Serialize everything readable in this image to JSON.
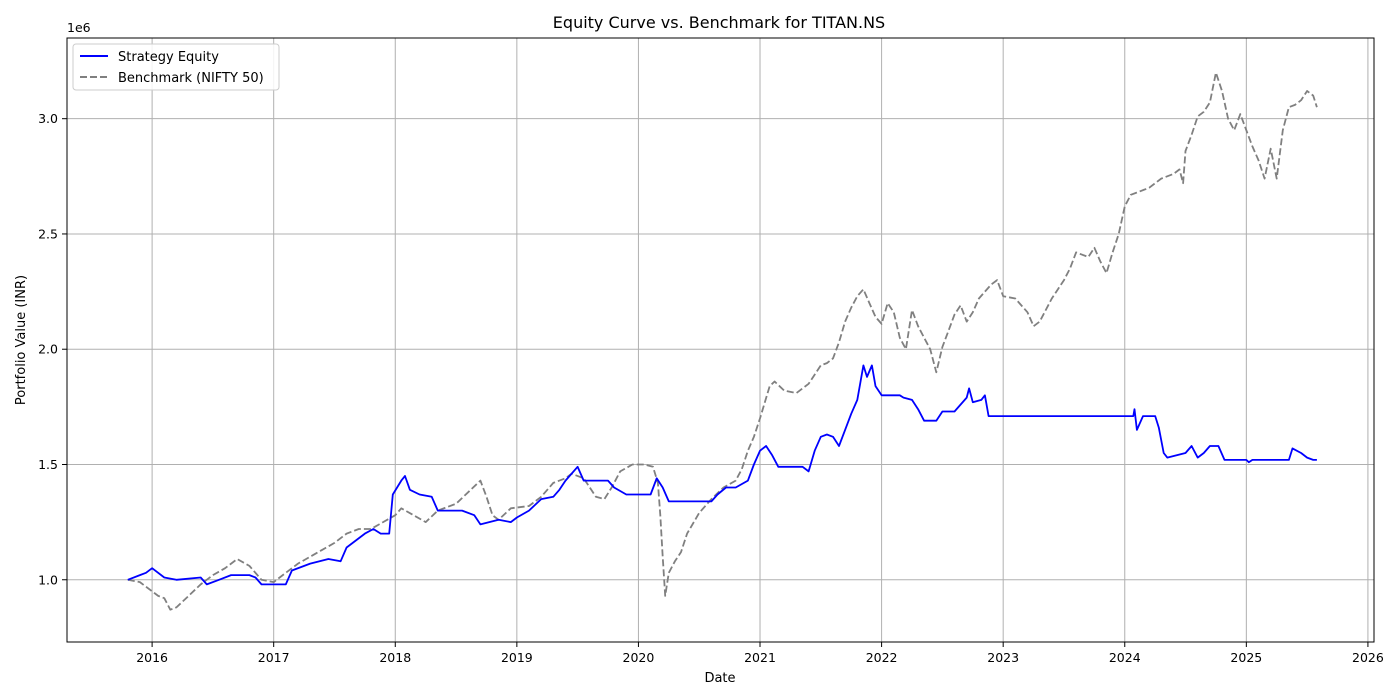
{
  "chart_data": {
    "type": "line",
    "title": "Equity Curve vs. Benchmark for TITAN.NS",
    "xlabel": "Date",
    "ylabel": "Portfolio Value (INR)",
    "y_scale_label": "1e6",
    "xlim": [
      2015.3,
      2026.05
    ],
    "ylim": [
      0.73,
      3.35
    ],
    "x_ticks": [
      2016,
      2017,
      2018,
      2019,
      2020,
      2021,
      2022,
      2023,
      2024,
      2025,
      2026
    ],
    "x_tick_labels": [
      "2016",
      "2017",
      "2018",
      "2019",
      "2020",
      "2021",
      "2022",
      "2023",
      "2024",
      "2025",
      "2026"
    ],
    "y_ticks": [
      1.0,
      1.5,
      2.0,
      2.5,
      3.0
    ],
    "y_tick_labels": [
      "1.0",
      "1.5",
      "2.0",
      "2.5",
      "3.0"
    ],
    "grid": true,
    "legend_position": "top-left",
    "series": [
      {
        "name": "Strategy Equity",
        "color": "#0000ff",
        "style": "solid",
        "points": [
          [
            2015.8,
            1.0
          ],
          [
            2015.9,
            1.02
          ],
          [
            2015.95,
            1.03
          ],
          [
            2016.0,
            1.05
          ],
          [
            2016.1,
            1.01
          ],
          [
            2016.2,
            1.0
          ],
          [
            2016.4,
            1.01
          ],
          [
            2016.45,
            0.98
          ],
          [
            2016.55,
            1.0
          ],
          [
            2016.65,
            1.02
          ],
          [
            2016.8,
            1.02
          ],
          [
            2016.85,
            1.01
          ],
          [
            2016.9,
            0.98
          ],
          [
            2017.1,
            0.98
          ],
          [
            2017.15,
            1.04
          ],
          [
            2017.3,
            1.07
          ],
          [
            2017.45,
            1.09
          ],
          [
            2017.55,
            1.08
          ],
          [
            2017.6,
            1.14
          ],
          [
            2017.75,
            1.2
          ],
          [
            2017.82,
            1.22
          ],
          [
            2017.88,
            1.2
          ],
          [
            2017.95,
            1.2
          ],
          [
            2017.98,
            1.37
          ],
          [
            2018.05,
            1.43
          ],
          [
            2018.08,
            1.45
          ],
          [
            2018.12,
            1.39
          ],
          [
            2018.2,
            1.37
          ],
          [
            2018.3,
            1.36
          ],
          [
            2018.35,
            1.3
          ],
          [
            2018.55,
            1.3
          ],
          [
            2018.65,
            1.28
          ],
          [
            2018.7,
            1.24
          ],
          [
            2018.85,
            1.26
          ],
          [
            2018.95,
            1.25
          ],
          [
            2019.0,
            1.27
          ],
          [
            2019.1,
            1.3
          ],
          [
            2019.2,
            1.35
          ],
          [
            2019.3,
            1.36
          ],
          [
            2019.35,
            1.39
          ],
          [
            2019.4,
            1.43
          ],
          [
            2019.5,
            1.49
          ],
          [
            2019.55,
            1.43
          ],
          [
            2019.75,
            1.43
          ],
          [
            2019.8,
            1.4
          ],
          [
            2019.9,
            1.37
          ],
          [
            2020.1,
            1.37
          ],
          [
            2020.15,
            1.44
          ],
          [
            2020.2,
            1.4
          ],
          [
            2020.25,
            1.34
          ],
          [
            2020.6,
            1.34
          ],
          [
            2020.65,
            1.37
          ],
          [
            2020.72,
            1.4
          ],
          [
            2020.8,
            1.4
          ],
          [
            2020.9,
            1.43
          ],
          [
            2020.95,
            1.5
          ],
          [
            2021.0,
            1.56
          ],
          [
            2021.05,
            1.58
          ],
          [
            2021.1,
            1.54
          ],
          [
            2021.15,
            1.49
          ],
          [
            2021.35,
            1.49
          ],
          [
            2021.4,
            1.47
          ],
          [
            2021.45,
            1.56
          ],
          [
            2021.5,
            1.62
          ],
          [
            2021.55,
            1.63
          ],
          [
            2021.6,
            1.62
          ],
          [
            2021.65,
            1.58
          ],
          [
            2021.7,
            1.65
          ],
          [
            2021.75,
            1.72
          ],
          [
            2021.8,
            1.78
          ],
          [
            2021.85,
            1.93
          ],
          [
            2021.88,
            1.88
          ],
          [
            2021.92,
            1.93
          ],
          [
            2021.95,
            1.84
          ],
          [
            2022.0,
            1.8
          ],
          [
            2022.15,
            1.8
          ],
          [
            2022.18,
            1.79
          ],
          [
            2022.25,
            1.78
          ],
          [
            2022.3,
            1.74
          ],
          [
            2022.35,
            1.69
          ],
          [
            2022.45,
            1.69
          ],
          [
            2022.5,
            1.73
          ],
          [
            2022.6,
            1.73
          ],
          [
            2022.7,
            1.79
          ],
          [
            2022.72,
            1.83
          ],
          [
            2022.75,
            1.77
          ],
          [
            2022.82,
            1.78
          ],
          [
            2022.85,
            1.8
          ],
          [
            2022.88,
            1.71
          ],
          [
            2024.07,
            1.71
          ],
          [
            2024.08,
            1.74
          ],
          [
            2024.1,
            1.65
          ],
          [
            2024.15,
            1.71
          ],
          [
            2024.25,
            1.71
          ],
          [
            2024.28,
            1.66
          ],
          [
            2024.32,
            1.55
          ],
          [
            2024.35,
            1.53
          ],
          [
            2024.5,
            1.55
          ],
          [
            2024.55,
            1.58
          ],
          [
            2024.6,
            1.53
          ],
          [
            2024.65,
            1.55
          ],
          [
            2024.7,
            1.58
          ],
          [
            2024.77,
            1.58
          ],
          [
            2024.82,
            1.52
          ],
          [
            2025.0,
            1.52
          ],
          [
            2025.02,
            1.51
          ],
          [
            2025.05,
            1.52
          ],
          [
            2025.35,
            1.52
          ],
          [
            2025.38,
            1.57
          ],
          [
            2025.45,
            1.55
          ],
          [
            2025.5,
            1.53
          ],
          [
            2025.55,
            1.52
          ],
          [
            2025.58,
            1.52
          ]
        ]
      },
      {
        "name": "Benchmark (NIFTY 50)",
        "color": "#808080",
        "style": "dashed",
        "points": [
          [
            2015.8,
            1.0
          ],
          [
            2015.9,
            0.99
          ],
          [
            2015.95,
            0.97
          ],
          [
            2016.05,
            0.93
          ],
          [
            2016.1,
            0.92
          ],
          [
            2016.15,
            0.87
          ],
          [
            2016.2,
            0.88
          ],
          [
            2016.3,
            0.93
          ],
          [
            2016.4,
            0.98
          ],
          [
            2016.5,
            1.02
          ],
          [
            2016.6,
            1.05
          ],
          [
            2016.7,
            1.09
          ],
          [
            2016.8,
            1.06
          ],
          [
            2016.9,
            1.0
          ],
          [
            2017.0,
            0.99
          ],
          [
            2017.1,
            1.03
          ],
          [
            2017.2,
            1.07
          ],
          [
            2017.3,
            1.1
          ],
          [
            2017.4,
            1.13
          ],
          [
            2017.5,
            1.16
          ],
          [
            2017.6,
            1.2
          ],
          [
            2017.7,
            1.22
          ],
          [
            2017.8,
            1.22
          ],
          [
            2017.9,
            1.25
          ],
          [
            2018.0,
            1.28
          ],
          [
            2018.05,
            1.31
          ],
          [
            2018.15,
            1.28
          ],
          [
            2018.25,
            1.25
          ],
          [
            2018.35,
            1.3
          ],
          [
            2018.5,
            1.33
          ],
          [
            2018.6,
            1.38
          ],
          [
            2018.7,
            1.43
          ],
          [
            2018.75,
            1.36
          ],
          [
            2018.8,
            1.28
          ],
          [
            2018.85,
            1.26
          ],
          [
            2018.95,
            1.31
          ],
          [
            2019.1,
            1.32
          ],
          [
            2019.2,
            1.36
          ],
          [
            2019.3,
            1.42
          ],
          [
            2019.4,
            1.44
          ],
          [
            2019.45,
            1.46
          ],
          [
            2019.55,
            1.44
          ],
          [
            2019.65,
            1.36
          ],
          [
            2019.72,
            1.35
          ],
          [
            2019.78,
            1.4
          ],
          [
            2019.85,
            1.47
          ],
          [
            2019.95,
            1.5
          ],
          [
            2020.05,
            1.5
          ],
          [
            2020.12,
            1.49
          ],
          [
            2020.16,
            1.42
          ],
          [
            2020.18,
            1.28
          ],
          [
            2020.2,
            1.1
          ],
          [
            2020.22,
            0.93
          ],
          [
            2020.25,
            1.03
          ],
          [
            2020.3,
            1.08
          ],
          [
            2020.35,
            1.12
          ],
          [
            2020.4,
            1.2
          ],
          [
            2020.5,
            1.29
          ],
          [
            2020.6,
            1.35
          ],
          [
            2020.7,
            1.4
          ],
          [
            2020.8,
            1.43
          ],
          [
            2020.85,
            1.48
          ],
          [
            2020.9,
            1.56
          ],
          [
            2020.95,
            1.62
          ],
          [
            2021.0,
            1.7
          ],
          [
            2021.08,
            1.84
          ],
          [
            2021.12,
            1.86
          ],
          [
            2021.2,
            1.82
          ],
          [
            2021.3,
            1.81
          ],
          [
            2021.4,
            1.85
          ],
          [
            2021.5,
            1.93
          ],
          [
            2021.55,
            1.94
          ],
          [
            2021.6,
            1.96
          ],
          [
            2021.65,
            2.03
          ],
          [
            2021.7,
            2.12
          ],
          [
            2021.75,
            2.18
          ],
          [
            2021.8,
            2.23
          ],
          [
            2021.85,
            2.26
          ],
          [
            2021.9,
            2.2
          ],
          [
            2021.95,
            2.14
          ],
          [
            2022.0,
            2.11
          ],
          [
            2022.05,
            2.2
          ],
          [
            2022.1,
            2.16
          ],
          [
            2022.15,
            2.05
          ],
          [
            2022.2,
            2.0
          ],
          [
            2022.25,
            2.17
          ],
          [
            2022.3,
            2.1
          ],
          [
            2022.35,
            2.05
          ],
          [
            2022.4,
            2.0
          ],
          [
            2022.45,
            1.9
          ],
          [
            2022.5,
            2.01
          ],
          [
            2022.55,
            2.08
          ],
          [
            2022.6,
            2.15
          ],
          [
            2022.65,
            2.19
          ],
          [
            2022.7,
            2.12
          ],
          [
            2022.75,
            2.16
          ],
          [
            2022.8,
            2.22
          ],
          [
            2022.9,
            2.28
          ],
          [
            2022.95,
            2.3
          ],
          [
            2023.0,
            2.23
          ],
          [
            2023.1,
            2.22
          ],
          [
            2023.2,
            2.16
          ],
          [
            2023.25,
            2.1
          ],
          [
            2023.3,
            2.12
          ],
          [
            2023.4,
            2.22
          ],
          [
            2023.5,
            2.3
          ],
          [
            2023.55,
            2.35
          ],
          [
            2023.6,
            2.42
          ],
          [
            2023.7,
            2.4
          ],
          [
            2023.75,
            2.44
          ],
          [
            2023.8,
            2.38
          ],
          [
            2023.85,
            2.33
          ],
          [
            2023.9,
            2.42
          ],
          [
            2023.95,
            2.5
          ],
          [
            2024.0,
            2.62
          ],
          [
            2024.05,
            2.67
          ],
          [
            2024.1,
            2.68
          ],
          [
            2024.2,
            2.7
          ],
          [
            2024.3,
            2.74
          ],
          [
            2024.4,
            2.76
          ],
          [
            2024.45,
            2.78
          ],
          [
            2024.48,
            2.72
          ],
          [
            2024.5,
            2.86
          ],
          [
            2024.55,
            2.93
          ],
          [
            2024.6,
            3.01
          ],
          [
            2024.65,
            3.03
          ],
          [
            2024.7,
            3.07
          ],
          [
            2024.75,
            3.2
          ],
          [
            2024.8,
            3.12
          ],
          [
            2024.85,
            3.0
          ],
          [
            2024.9,
            2.95
          ],
          [
            2024.95,
            3.02
          ],
          [
            2025.0,
            2.95
          ],
          [
            2025.05,
            2.88
          ],
          [
            2025.1,
            2.82
          ],
          [
            2025.15,
            2.74
          ],
          [
            2025.2,
            2.87
          ],
          [
            2025.25,
            2.74
          ],
          [
            2025.3,
            2.95
          ],
          [
            2025.35,
            3.05
          ],
          [
            2025.4,
            3.06
          ],
          [
            2025.45,
            3.08
          ],
          [
            2025.5,
            3.12
          ],
          [
            2025.55,
            3.1
          ],
          [
            2025.58,
            3.05
          ]
        ]
      }
    ]
  }
}
